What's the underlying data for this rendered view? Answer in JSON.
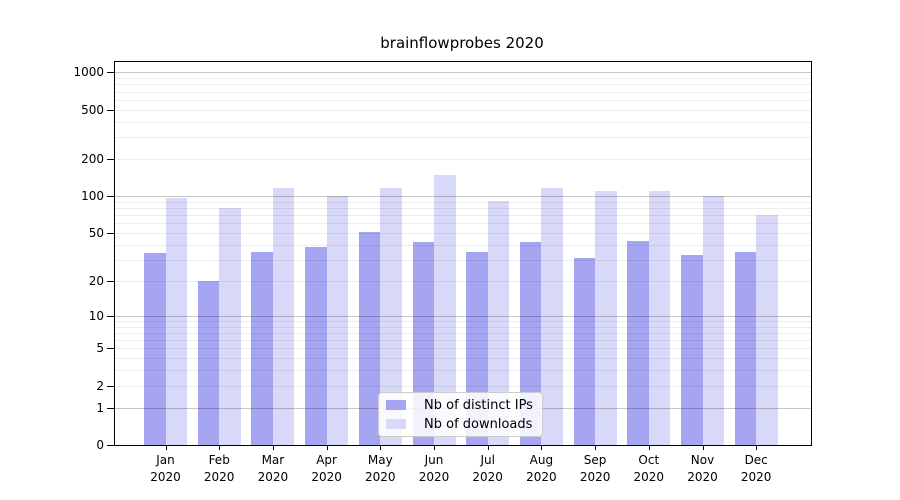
{
  "chart_data": {
    "type": "bar",
    "title": "brainflowprobes 2020",
    "categories": [
      "Jan",
      "Feb",
      "Mar",
      "Apr",
      "May",
      "Jun",
      "Jul",
      "Aug",
      "Sep",
      "Oct",
      "Nov",
      "Dec"
    ],
    "category_year": "2020",
    "series": [
      {
        "name": "Nb of distinct IPs",
        "color": "#a5a5f2",
        "values": [
          34,
          20,
          35,
          38,
          51,
          42,
          35,
          42,
          31,
          43,
          33,
          35
        ]
      },
      {
        "name": "Nb of downloads",
        "color": "#d8d8f9",
        "values": [
          97,
          80,
          117,
          101,
          116,
          147,
          91,
          117,
          111,
          110,
          101,
          70
        ]
      }
    ],
    "yscale": "log10(value+1)",
    "ytick_values": [
      0,
      1,
      2,
      5,
      10,
      20,
      50,
      100,
      200,
      500,
      1000
    ],
    "ylim": [
      0,
      1190
    ],
    "grid": {
      "orientation": "horizontal",
      "major_at": [
        1,
        10,
        100,
        1000
      ],
      "minor_multiples": [
        2,
        3,
        4,
        5,
        6,
        7,
        8,
        9
      ],
      "minor_decades": [
        1,
        10,
        100
      ]
    },
    "legend": {
      "position": "lower-center"
    }
  },
  "colors": {
    "background": "#ffffff",
    "axis": "#000000",
    "bar_distinct_ips": "#a5a5f2",
    "bar_downloads": "#d8d8f9",
    "legend_border": "#cccccc"
  }
}
